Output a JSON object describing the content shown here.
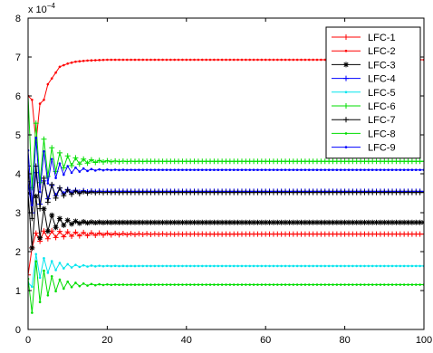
{
  "chart_data": {
    "type": "line",
    "title": "",
    "xlabel": "",
    "ylabel": "",
    "y_multiplier_label": "x 10",
    "y_multiplier_exponent": "−4",
    "xlim": [
      0,
      100
    ],
    "ylim": [
      0,
      8
    ],
    "xticks": [
      0,
      20,
      40,
      60,
      80,
      100
    ],
    "yticks": [
      0,
      1,
      2,
      3,
      4,
      5,
      6,
      7,
      8
    ],
    "grid": false,
    "legend_position": "top-right",
    "series": [
      {
        "name": "LFC-1",
        "color": "#ff0000",
        "marker": "plus",
        "start": 1.4,
        "final": 2.45,
        "osc": 0.15,
        "decay": 0.1
      },
      {
        "name": "LFC-2",
        "color": "#ff0000",
        "marker": "dot",
        "start": 6.0,
        "final": 6.93,
        "osc": 1.1,
        "decay": 0.33,
        "path": [
          [
            0,
            6.0
          ],
          [
            1,
            5.9
          ],
          [
            2,
            4.8
          ],
          [
            3,
            5.8
          ],
          [
            4,
            5.9
          ],
          [
            5,
            6.3
          ],
          [
            6,
            6.45
          ],
          [
            7,
            6.6
          ],
          [
            8,
            6.75
          ],
          [
            10,
            6.83
          ],
          [
            12,
            6.88
          ],
          [
            15,
            6.91
          ],
          [
            20,
            6.93
          ],
          [
            100,
            6.93
          ]
        ]
      },
      {
        "name": "LFC-3",
        "color": "#000000",
        "marker": "asterisk",
        "start": 3.5,
        "final": 2.75,
        "osc": 0.8,
        "decay": 0.3
      },
      {
        "name": "LFC-4",
        "color": "#0000ff",
        "marker": "plus",
        "start": 3.8,
        "final": 3.55,
        "osc": 0.6,
        "decay": 0.28
      },
      {
        "name": "LFC-5",
        "color": "#00e5ee",
        "marker": "dot",
        "start": 1.2,
        "final": 1.63,
        "osc": 0.45,
        "decay": 0.25
      },
      {
        "name": "LFC-6",
        "color": "#00dd00",
        "marker": "plus",
        "start": 6.0,
        "final": 4.32,
        "osc": 1.0,
        "decay": 0.22
      },
      {
        "name": "LFC-7",
        "color": "#000000",
        "marker": "plus",
        "start": 4.2,
        "final": 3.52,
        "osc": 0.8,
        "decay": 0.28
      },
      {
        "name": "LFC-8",
        "color": "#00dd00",
        "marker": "dot",
        "start": 1.3,
        "final": 1.15,
        "osc": 0.75,
        "decay": 0.25
      },
      {
        "name": "LFC-9",
        "color": "#0000ff",
        "marker": "dot",
        "start": 4.6,
        "final": 4.1,
        "osc": 1.0,
        "decay": 0.26
      }
    ]
  }
}
